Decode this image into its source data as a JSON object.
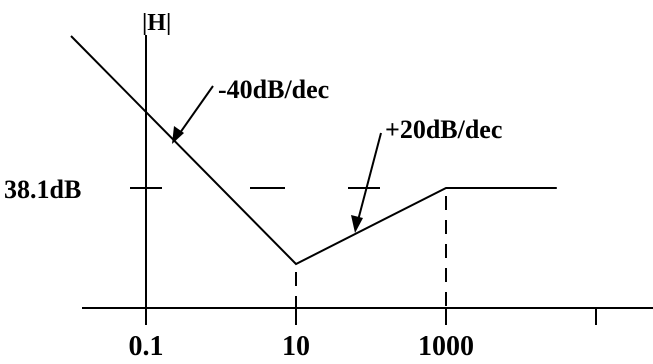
{
  "chart_data": {
    "type": "line",
    "title": "",
    "ylabel": "|H|",
    "xlabel": "",
    "x_scale": "log",
    "x_ticks": [
      {
        "value": 0.1,
        "label": "0.1"
      },
      {
        "value": 10,
        "label": "10"
      },
      {
        "value": 1000,
        "label": "1000"
      },
      {
        "value": 100000,
        "label": ""
      }
    ],
    "y_reference": {
      "value": 38.1,
      "label": "38.1dB",
      "style": "dashed"
    },
    "series": [
      {
        "points": [
          {
            "x": 0.01,
            "y": 118.1
          },
          {
            "x": 10,
            "y": -1.9
          },
          {
            "x": 1000,
            "y": 38.1
          },
          {
            "x": 30000,
            "y": 38.1
          }
        ]
      }
    ],
    "annotations": [
      {
        "text": "-40dB/dec",
        "points_to_x": 0.2
      },
      {
        "text": "+20dB/dec",
        "points_to_x": 100
      }
    ],
    "grid": false,
    "ylim": [
      -12,
      125
    ]
  }
}
